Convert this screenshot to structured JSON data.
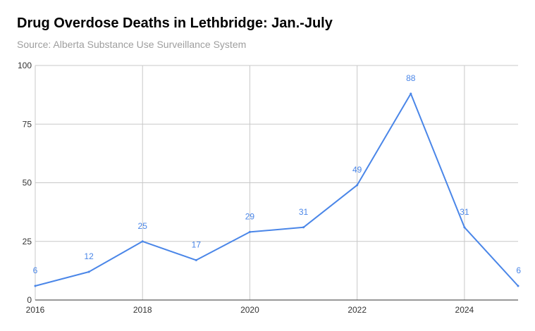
{
  "chart_data": {
    "type": "line",
    "title": "Drug Overdose Deaths in Lethbridge: Jan.-July",
    "subtitle": "Source: Alberta Substance Use Surveillance System",
    "x": [
      2016,
      2017,
      2018,
      2019,
      2020,
      2021,
      2022,
      2023,
      2024,
      2025
    ],
    "series": [
      {
        "values": [
          6,
          12,
          25,
          17,
          29,
          31,
          49,
          88,
          31,
          6
        ]
      }
    ],
    "xticks": [
      "2016",
      "2018",
      "2020",
      "2022",
      "2024"
    ],
    "yticks": [
      "0",
      "25",
      "50",
      "75",
      "100"
    ],
    "xlim": [
      2016,
      2025
    ],
    "ylim": [
      0,
      100
    ],
    "grid": true,
    "data_labels": true,
    "colors": {
      "line": "#4a86e8",
      "label": "#4a86e8",
      "grid": "#c8c8c8",
      "axis": "#333333"
    }
  }
}
